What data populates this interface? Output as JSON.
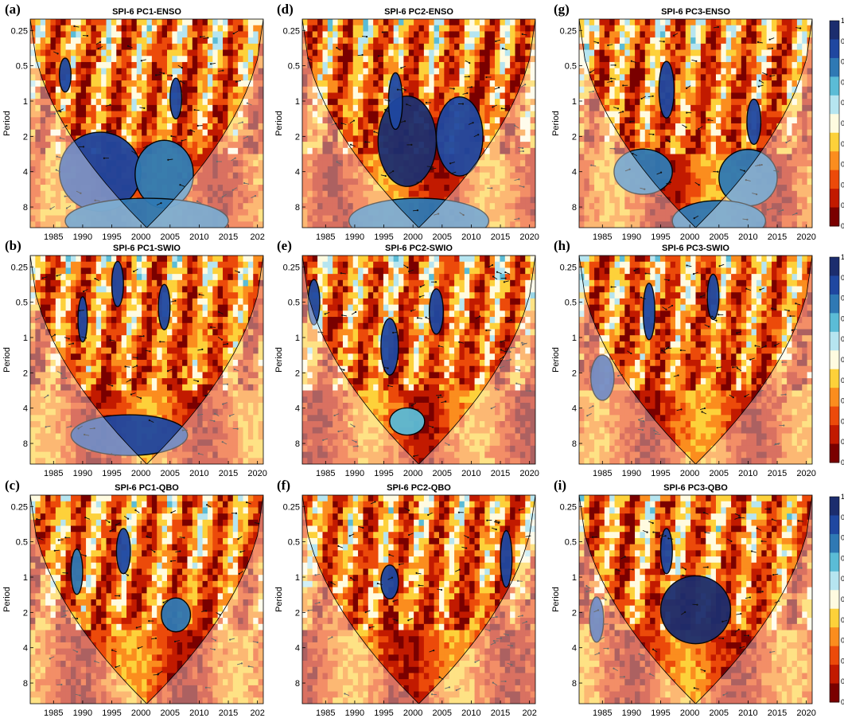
{
  "chart_data": [
    {
      "type": "heatmap",
      "letter": "(a)",
      "title": "SPI-6 PC1-ENSO",
      "ylabel": "Period",
      "x_ticks": [
        "1985",
        "1990",
        "1995",
        "2000",
        "2005",
        "2010",
        "2015",
        "202"
      ],
      "y_ticks": [
        "0.25",
        "0.5",
        "1",
        "2",
        "4",
        "8"
      ],
      "xlim": [
        1981,
        2021
      ],
      "ylim": [
        0.2,
        12
      ],
      "hotspots": [
        {
          "x": 1993,
          "y": 4.0,
          "rx": 7,
          "ry": 0.35,
          "v": 0.9
        },
        {
          "x": 2004,
          "y": 4.2,
          "rx": 5,
          "ry": 0.3,
          "v": 0.8
        },
        {
          "x": 2001,
          "y": 10.5,
          "rx": 14,
          "ry": 0.2,
          "v": 0.75
        },
        {
          "x": 1987,
          "y": 0.6,
          "rx": 1,
          "ry": 0.15,
          "v": 0.9
        },
        {
          "x": 2006,
          "y": 0.95,
          "rx": 1,
          "ry": 0.18,
          "v": 0.85
        }
      ]
    },
    {
      "type": "heatmap",
      "letter": "(b)",
      "title": "SPI-6 PC1-SWIO",
      "ylabel": "Period",
      "x_ticks": [
        "1985",
        "1990",
        "1995",
        "2000",
        "2005",
        "2010",
        "2015",
        "2020"
      ],
      "y_ticks": [
        "0.25",
        "0.5",
        "1",
        "2",
        "4",
        "8"
      ],
      "xlim": [
        1981,
        2021
      ],
      "ylim": [
        0.2,
        12
      ],
      "hotspots": [
        {
          "x": 1998,
          "y": 6.8,
          "rx": 10,
          "ry": 0.18,
          "v": 0.85
        },
        {
          "x": 1996,
          "y": 0.35,
          "rx": 1,
          "ry": 0.2,
          "v": 0.9
        },
        {
          "x": 2004,
          "y": 0.55,
          "rx": 1,
          "ry": 0.2,
          "v": 0.85
        },
        {
          "x": 1990,
          "y": 0.7,
          "rx": 0.8,
          "ry": 0.2,
          "v": 0.9
        }
      ]
    },
    {
      "type": "heatmap",
      "letter": "(c)",
      "title": "SPI-6 PC1-QBO",
      "ylabel": "Period",
      "x_ticks": [
        "1985",
        "1990",
        "1995",
        "2000",
        "2005",
        "2010",
        "2015",
        "202"
      ],
      "y_ticks": [
        "0.25",
        "0.5",
        "1",
        "2",
        "4",
        "8"
      ],
      "xlim": [
        1981,
        2021
      ],
      "ylim": [
        0.2,
        12
      ],
      "hotspots": [
        {
          "x": 2006,
          "y": 2.1,
          "rx": 2.5,
          "ry": 0.15,
          "v": 0.8
        },
        {
          "x": 1997,
          "y": 0.6,
          "rx": 1.2,
          "ry": 0.2,
          "v": 0.85
        },
        {
          "x": 1989,
          "y": 0.9,
          "rx": 1,
          "ry": 0.2,
          "v": 0.8
        }
      ]
    },
    {
      "type": "heatmap",
      "letter": "(d)",
      "title": "SPI-6 PC2-ENSO",
      "ylabel": "Period",
      "x_ticks": [
        "1985",
        "1990",
        "1995",
        "2000",
        "2005",
        "2010",
        "2015",
        "2020"
      ],
      "y_ticks": [
        "0.25",
        "0.5",
        "1",
        "2",
        "4",
        "8"
      ],
      "xlim": [
        1981,
        2021
      ],
      "ylim": [
        0.2,
        12
      ],
      "hotspots": [
        {
          "x": 1999,
          "y": 2.2,
          "rx": 5,
          "ry": 0.4,
          "v": 0.95
        },
        {
          "x": 2008,
          "y": 2.0,
          "rx": 4,
          "ry": 0.35,
          "v": 0.9
        },
        {
          "x": 1997,
          "y": 1.0,
          "rx": 1.2,
          "ry": 0.25,
          "v": 0.85
        },
        {
          "x": 2001,
          "y": 10.5,
          "rx": 12,
          "ry": 0.2,
          "v": 0.8
        }
      ]
    },
    {
      "type": "heatmap",
      "letter": "(e)",
      "title": "SPI-6 PC2-SWIO",
      "ylabel": "Period",
      "x_ticks": [
        "1985",
        "1990",
        "1995",
        "2000",
        "2005",
        "2010",
        "2015",
        "2020"
      ],
      "y_ticks": [
        "0.25",
        "0.5",
        "1",
        "2",
        "4",
        "8"
      ],
      "xlim": [
        1981,
        2021
      ],
      "ylim": [
        0.2,
        12
      ],
      "hotspots": [
        {
          "x": 1996,
          "y": 1.2,
          "rx": 1.5,
          "ry": 0.25,
          "v": 0.9
        },
        {
          "x": 2004,
          "y": 0.6,
          "rx": 1.2,
          "ry": 0.2,
          "v": 0.9
        },
        {
          "x": 1999,
          "y": 5.2,
          "rx": 3,
          "ry": 0.12,
          "v": 0.7
        },
        {
          "x": 1983,
          "y": 0.5,
          "rx": 1,
          "ry": 0.2,
          "v": 0.85
        }
      ]
    },
    {
      "type": "heatmap",
      "letter": "(f)",
      "title": "SPI-6 PC2-QBO",
      "ylabel": "Period",
      "x_ticks": [
        "1985",
        "1990",
        "1995",
        "2000",
        "2005",
        "2010",
        "2015",
        "202"
      ],
      "y_ticks": [
        "0.25",
        "0.5",
        "1",
        "2",
        "4",
        "8"
      ],
      "xlim": [
        1981,
        2021
      ],
      "ylim": [
        0.2,
        12
      ],
      "hotspots": [
        {
          "x": 1996,
          "y": 1.1,
          "rx": 1.5,
          "ry": 0.15,
          "v": 0.85
        },
        {
          "x": 2016,
          "y": 0.7,
          "rx": 1,
          "ry": 0.25,
          "v": 0.85
        }
      ]
    },
    {
      "type": "heatmap",
      "letter": "(g)",
      "title": "SPI-6 PC3-ENSO",
      "ylabel": "Period",
      "x_ticks": [
        "1985",
        "1990",
        "1995",
        "2000",
        "2005",
        "2010",
        "2015",
        "2020"
      ],
      "y_ticks": [
        "0.25",
        "0.5",
        "1",
        "2",
        "4",
        "8"
      ],
      "xlim": [
        1981,
        2021
      ],
      "ylim": [
        0.2,
        12
      ],
      "hotspots": [
        {
          "x": 1992,
          "y": 4.0,
          "rx": 5,
          "ry": 0.2,
          "v": 0.8
        },
        {
          "x": 2010,
          "y": 4.5,
          "rx": 5,
          "ry": 0.25,
          "v": 0.75
        },
        {
          "x": 2005,
          "y": 10.5,
          "rx": 8,
          "ry": 0.18,
          "v": 0.75
        },
        {
          "x": 1996,
          "y": 0.8,
          "rx": 1.3,
          "ry": 0.25,
          "v": 0.9
        },
        {
          "x": 2011,
          "y": 1.5,
          "rx": 1.2,
          "ry": 0.2,
          "v": 0.85
        }
      ]
    },
    {
      "type": "heatmap",
      "letter": "(h)",
      "title": "SPI-6 PC3-SWIO",
      "ylabel": "Period",
      "x_ticks": [
        "1985",
        "1990",
        "1995",
        "2000",
        "2005",
        "2010",
        "2015",
        "2020"
      ],
      "y_ticks": [
        "0.25",
        "0.5",
        "1",
        "2",
        "4",
        "8"
      ],
      "xlim": [
        1981,
        2021
      ],
      "ylim": [
        0.2,
        12
      ],
      "hotspots": [
        {
          "x": 1985,
          "y": 2.2,
          "rx": 2,
          "ry": 0.2,
          "v": 0.85
        },
        {
          "x": 1993,
          "y": 0.6,
          "rx": 1,
          "ry": 0.25,
          "v": 0.9
        },
        {
          "x": 2004,
          "y": 0.45,
          "rx": 1,
          "ry": 0.2,
          "v": 0.85
        }
      ]
    },
    {
      "type": "heatmap",
      "letter": "(i)",
      "title": "SPI-6 PC3-QBO",
      "ylabel": "Period",
      "x_ticks": [
        "1985",
        "1990",
        "1995",
        "2000",
        "2005",
        "2010",
        "2015",
        "2020"
      ],
      "y_ticks": [
        "0.25",
        "0.5",
        "1",
        "2",
        "4",
        "8"
      ],
      "xlim": [
        1981,
        2021
      ],
      "ylim": [
        0.2,
        12
      ],
      "hotspots": [
        {
          "x": 2001,
          "y": 1.9,
          "rx": 6,
          "ry": 0.3,
          "v": 0.95
        },
        {
          "x": 1984,
          "y": 2.3,
          "rx": 1.2,
          "ry": 0.2,
          "v": 0.85
        },
        {
          "x": 1996,
          "y": 0.6,
          "rx": 1,
          "ry": 0.2,
          "v": 0.85
        }
      ]
    }
  ],
  "colorbars": [
    {
      "labels": [
        "1",
        "0",
        "0",
        "0",
        "0",
        "0",
        "0",
        "0",
        "0",
        "0",
        "0"
      ]
    },
    {
      "labels": [
        "1",
        "0",
        "0",
        "0",
        "0",
        "0",
        "0",
        "0",
        "0",
        "0",
        "0"
      ]
    },
    {
      "labels": [
        "1",
        "0",
        "0",
        "0",
        "0",
        "0",
        "0",
        "0",
        "0",
        "0",
        "0"
      ]
    }
  ],
  "colors": {
    "low": "#7a0000",
    "mid": "#fffbe0",
    "high": "#1c2d6e",
    "ramp": [
      "#7a0000",
      "#c21a00",
      "#ec4a0a",
      "#fb8d1e",
      "#fdd13a",
      "#fffbe0",
      "#b6e5f0",
      "#5bbcd6",
      "#2f79b4",
      "#1f47a0",
      "#1c2d6e"
    ]
  }
}
